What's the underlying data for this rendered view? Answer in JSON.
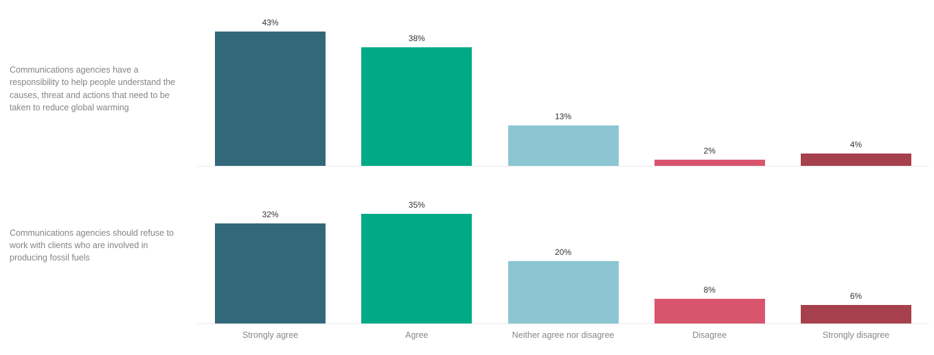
{
  "chart_data": {
    "type": "bar",
    "orientation": "vertical",
    "panes": 2,
    "categories": [
      "Strongly agree",
      "Agree",
      "Neither agree nor disagree",
      "Disagree",
      "Strongly disagree"
    ],
    "series": [
      {
        "name": "Communications agencies have a responsibility to help people understand the causes, threat and actions that need to be taken to reduce global warming",
        "values": [
          43,
          38,
          13,
          2,
          4
        ]
      },
      {
        "name": "Communications agencies should refuse to work with clients who are involved in producing fossil fuels",
        "values": [
          32,
          35,
          20,
          8,
          6
        ]
      }
    ],
    "value_suffix": "%",
    "bar_colors": [
      "#33677a",
      "#00aa87",
      "#8cc6d3",
      "#d9556e",
      "#a6404d"
    ],
    "ylim": [
      0,
      50
    ],
    "grid": "baseline-only",
    "legend": "none",
    "title": "",
    "xlabel": "",
    "ylabel": ""
  },
  "rows": [
    {
      "label": "Communications agencies have a responsibility to help people understand the causes, threat and actions that need to be taken to reduce global warming",
      "value_labels": [
        "43%",
        "38%",
        "13%",
        "2%",
        "4%"
      ]
    },
    {
      "label": "Communications agencies should refuse to work with clients who are involved in producing fossil fuels",
      "value_labels": [
        "32%",
        "35%",
        "20%",
        "8%",
        "6%"
      ]
    }
  ],
  "colors": {
    "background": "#ffffff",
    "baseline": "#e9e9e9",
    "value_label_text": "#333333",
    "category_text": "#878787",
    "row_label_text": "#848484"
  }
}
